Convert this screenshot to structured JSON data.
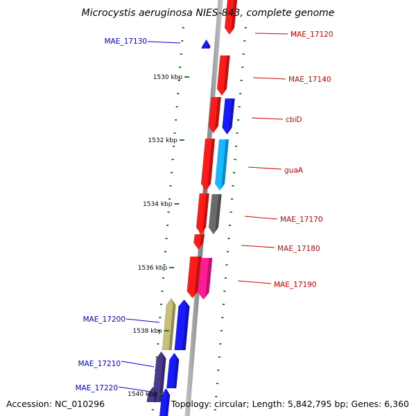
{
  "title": "Microcystis aeruginosa NIES-843, complete genome",
  "footer": {
    "accession": "Accession: NC_010296",
    "topology": "Topology: circular; Length: 5,842,795 bp; Genes: 6,360"
  },
  "colors": {
    "backbone": "#8a8a8a",
    "tick_dot": "#1a7a1a",
    "forward_label": "#cc0000",
    "reverse_label": "#0000cc"
  },
  "kbp_ticks": [
    "1530 kbp",
    "1532 kbp",
    "1534 kbp",
    "1536 kbp",
    "1538 kbp",
    "1540 kbp"
  ],
  "genes": [
    {
      "name": "MAE_17120",
      "color": "#ff1a1a",
      "strand": "forward",
      "labeled": true
    },
    {
      "name": "MAE_17130",
      "color": "#1a1aff",
      "strand": "reverse",
      "labeled": true
    },
    {
      "name": "MAE_17140",
      "color": "#ff1a1a",
      "strand": "forward",
      "labeled": true
    },
    {
      "name": "",
      "color": "#ff1a1a",
      "strand": "forward",
      "labeled": false
    },
    {
      "name": "cbiD",
      "color": "#1a1aff",
      "strand": "forward",
      "labeled": true
    },
    {
      "name": "",
      "color": "#ff1a1a",
      "strand": "forward",
      "labeled": false
    },
    {
      "name": "guaA",
      "color": "#1ab8ff",
      "strand": "forward",
      "labeled": true
    },
    {
      "name": "",
      "color": "#ff1a1a",
      "strand": "forward",
      "labeled": false
    },
    {
      "name": "MAE_17170",
      "color": "#6a6a6a",
      "strand": "forward",
      "labeled": true
    },
    {
      "name": "MAE_17180",
      "color": "#ff1a1a",
      "strand": "forward",
      "labeled": true
    },
    {
      "name": "",
      "color": "#ff1a1a",
      "strand": "forward",
      "labeled": false
    },
    {
      "name": "MAE_17190",
      "color": "#ff1a9a",
      "strand": "forward",
      "labeled": true
    },
    {
      "name": "MAE_17200",
      "color": "#c8c07a",
      "strand": "reverse",
      "labeled": true
    },
    {
      "name": "",
      "color": "#1a1aff",
      "strand": "reverse",
      "labeled": false
    },
    {
      "name": "MAE_17210",
      "color": "#4a3a8a",
      "strand": "reverse",
      "labeled": true
    },
    {
      "name": "",
      "color": "#1a1aff",
      "strand": "reverse",
      "labeled": false
    },
    {
      "name": "MAE_17220",
      "color": "#4a3a8a",
      "strand": "reverse",
      "labeled": true
    },
    {
      "name": "",
      "color": "#1a1aff",
      "strand": "reverse",
      "labeled": false
    }
  ]
}
